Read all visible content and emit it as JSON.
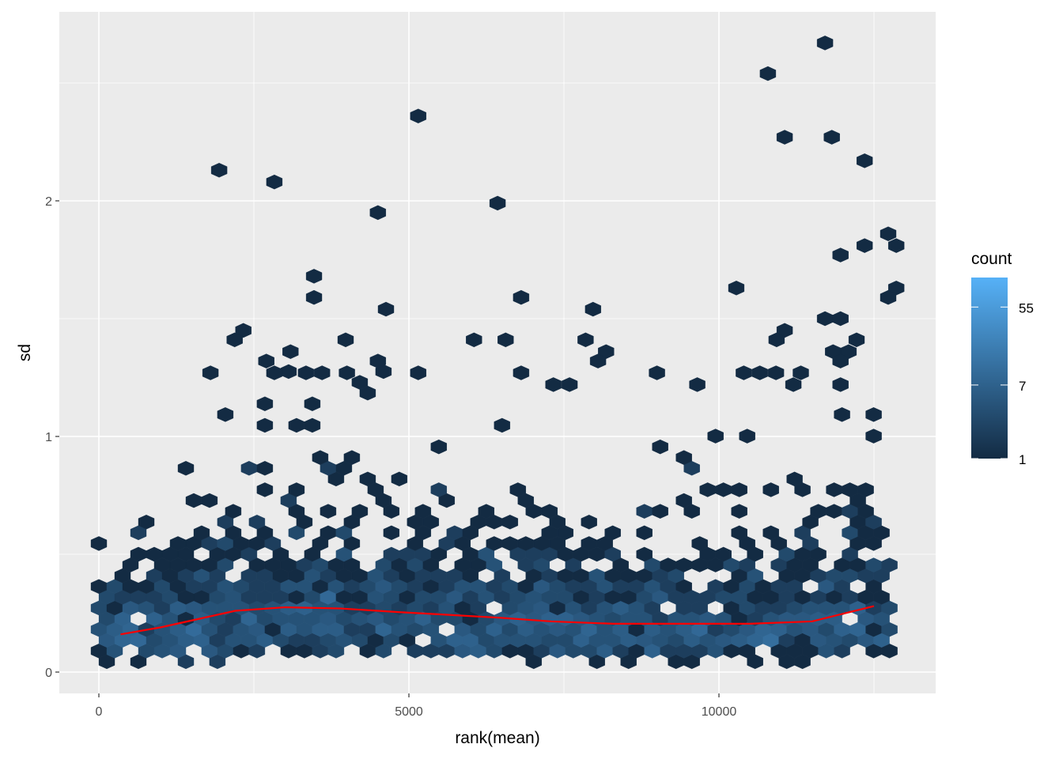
{
  "chart_data": {
    "type": "hexbin",
    "xlabel": "rank(mean)",
    "ylabel": "sd",
    "xlim": [
      -630,
      13500
    ],
    "ylim": [
      -0.09,
      2.8
    ],
    "x_ticks": [
      {
        "value": 0,
        "label": "0"
      },
      {
        "value": 5000,
        "label": "5000"
      },
      {
        "value": 10000,
        "label": "10000"
      }
    ],
    "x_minor": [
      2500,
      7500,
      12500
    ],
    "y_ticks": [
      {
        "value": 0,
        "label": "0"
      },
      {
        "value": 1,
        "label": "1"
      },
      {
        "value": 2,
        "label": "2"
      }
    ],
    "y_minor": [
      0.5,
      1.5,
      2.5
    ],
    "grid": true,
    "legend": {
      "title": "count",
      "position": "right",
      "scale": "log",
      "range": [
        1,
        120
      ],
      "breaks": [
        {
          "value": 55,
          "label": "55"
        },
        {
          "value": 7,
          "label": "7"
        },
        {
          "value": 1,
          "label": "1"
        }
      ],
      "low_color": "#132B43",
      "high_color": "#56B1F7"
    },
    "hex_bin_width_rank": 255,
    "hex_row_height_sd": 0.0456,
    "body_model": {
      "rank_max": 12750,
      "median_sd_follows_trend": true,
      "log_sigma": 0.58,
      "scale": 15
    },
    "outliers": [
      [
        1940,
        2.13
      ],
      [
        2830,
        2.08
      ],
      [
        5150,
        2.36
      ],
      [
        4500,
        1.95
      ],
      [
        6430,
        1.99
      ],
      [
        3470,
        1.68
      ],
      [
        3470,
        1.59
      ],
      [
        4630,
        1.54
      ],
      [
        6810,
        1.59
      ],
      [
        7970,
        1.54
      ],
      [
        10790,
        2.54
      ],
      [
        11710,
        2.67
      ],
      [
        11060,
        2.27
      ],
      [
        11820,
        2.27
      ],
      [
        12350,
        2.17
      ],
      [
        12350,
        1.81
      ],
      [
        11960,
        1.77
      ],
      [
        12730,
        1.86
      ],
      [
        12860,
        1.81
      ],
      [
        12860,
        1.63
      ],
      [
        12730,
        1.59
      ],
      [
        10280,
        1.63
      ],
      [
        2330,
        1.45
      ],
      [
        2190,
        1.41
      ],
      [
        3090,
        1.36
      ],
      [
        3980,
        1.41
      ],
      [
        4500,
        1.32
      ],
      [
        6050,
        1.41
      ],
      [
        6560,
        1.41
      ],
      [
        7850,
        1.41
      ],
      [
        11060,
        1.45
      ],
      [
        10930,
        1.41
      ],
      [
        11710,
        1.5
      ],
      [
        11960,
        1.5
      ],
      [
        11840,
        1.36
      ],
      [
        12090,
        1.36
      ],
      [
        12220,
        1.41
      ],
      [
        11960,
        1.32
      ],
      [
        8180,
        1.36
      ],
      [
        8050,
        1.32
      ],
      [
        1800,
        1.27
      ],
      [
        2700,
        1.32
      ],
      [
        2830,
        1.27
      ],
      [
        3340,
        1.27
      ],
      [
        3600,
        1.27
      ],
      [
        4000,
        1.27
      ],
      [
        5150,
        1.27
      ],
      [
        6810,
        1.27
      ],
      [
        7330,
        1.22
      ],
      [
        7590,
        1.22
      ],
      [
        9000,
        1.27
      ],
      [
        9650,
        1.22
      ],
      [
        10400,
        1.27
      ],
      [
        10660,
        1.27
      ],
      [
        10920,
        1.27
      ],
      [
        11320,
        1.27
      ],
      [
        11960,
        1.22
      ],
      [
        11200,
        1.22
      ]
    ],
    "trend_line": {
      "color": "#FF0000",
      "x": [
        350,
        1000,
        2200,
        3000,
        3900,
        4800,
        5500,
        6500,
        7300,
        8300,
        9500,
        10500,
        11500,
        12500
      ],
      "y": [
        0.16,
        0.19,
        0.26,
        0.275,
        0.27,
        0.255,
        0.245,
        0.23,
        0.215,
        0.205,
        0.205,
        0.205,
        0.215,
        0.28
      ]
    }
  }
}
